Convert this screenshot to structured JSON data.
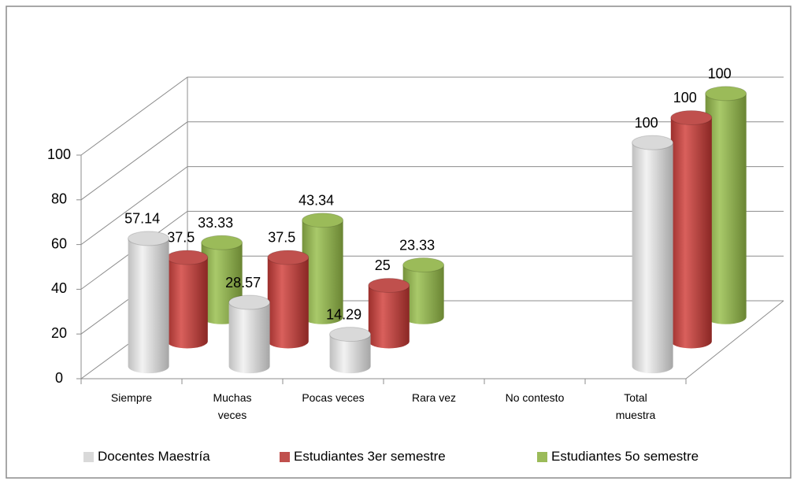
{
  "chart_data": {
    "type": "bar3d",
    "categories": [
      "Siempre",
      "Muchas veces",
      "Pocas veces",
      "Rara vez",
      "No contesto",
      "Total muestra"
    ],
    "series": [
      {
        "name": "Docentes Maestría",
        "color": "#d9d9d9",
        "values": [
          57.14,
          28.57,
          14.29,
          null,
          null,
          100
        ]
      },
      {
        "name": "Estudiantes 3er semestre",
        "color": "#c0504d",
        "values": [
          37.5,
          37.5,
          25,
          null,
          null,
          100
        ]
      },
      {
        "name": "Estudiantes 5o semestre",
        "color": "#9bbb59",
        "values": [
          33.33,
          43.34,
          23.33,
          null,
          null,
          100
        ]
      }
    ],
    "ylim": [
      0,
      100
    ],
    "yticks": [
      0,
      20,
      40,
      60,
      80,
      100
    ],
    "grid": true,
    "legend": "bottom"
  }
}
